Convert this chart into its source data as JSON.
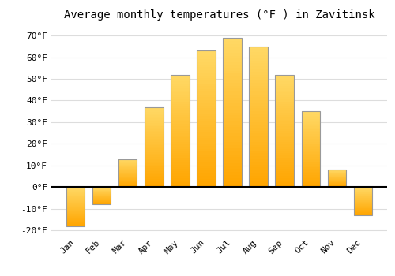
{
  "title": "Average monthly temperatures (°F ) in Zavitinsk",
  "months": [
    "Jan",
    "Feb",
    "Mar",
    "Apr",
    "May",
    "Jun",
    "Jul",
    "Aug",
    "Sep",
    "Oct",
    "Nov",
    "Dec"
  ],
  "values": [
    -18,
    -8,
    13,
    37,
    52,
    63,
    69,
    65,
    52,
    35,
    8,
    -13
  ],
  "bar_color_light": "#FFD966",
  "bar_color_dark": "#FFA500",
  "bar_edge_color": "#999999",
  "background_color": "#FFFFFF",
  "plot_bg_color": "#FFFFFF",
  "grid_color": "#DDDDDD",
  "ylim_min": -22,
  "ylim_max": 75,
  "yticks": [
    -20,
    -10,
    0,
    10,
    20,
    30,
    40,
    50,
    60,
    70
  ],
  "title_fontsize": 10,
  "tick_fontsize": 8,
  "zero_line_color": "#000000",
  "bar_width": 0.7
}
